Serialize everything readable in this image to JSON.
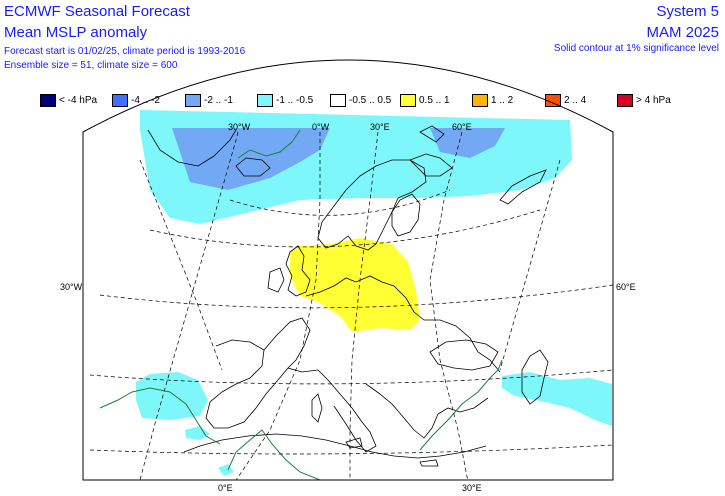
{
  "header": {
    "title": "ECMWF Seasonal Forecast",
    "subtitle": "Mean MSLP anomaly",
    "forecast_start": "Forecast start is 01/02/25, climate period is 1993-2016",
    "ensemble": "Ensemble size = 51, climate size = 600",
    "system": "System 5",
    "season": "MAM 2025",
    "significance_note": "Solid contour at 1% significance level"
  },
  "legend": {
    "unit": "hPa",
    "items": [
      {
        "label": "< -4 hPa",
        "color": "#00007f"
      },
      {
        "label": "-4 .. -2",
        "color": "#3f6fff"
      },
      {
        "label": "-2 .. -1",
        "color": "#73a8f5"
      },
      {
        "label": "-1 .. -0.5",
        "color": "#7df7fa"
      },
      {
        "label": "-0.5 .. 0.5",
        "color": "#ffffff"
      },
      {
        "label": "0.5 .. 1",
        "color": "#ffff33"
      },
      {
        "label": "1 .. 2",
        "color": "#ffb000"
      },
      {
        "label": "2 .. 4",
        "color": "#ff4f00"
      },
      {
        "label": "> 4 hPa",
        "color": "#d70029"
      }
    ]
  },
  "map": {
    "region": "Europe / North Atlantic",
    "graticule_labels": {
      "top": [
        "30°W",
        "0°W",
        "30°E",
        "60°E"
      ],
      "left": [
        "30°W"
      ],
      "right": [
        "60°E"
      ],
      "bottom": [
        "0°E",
        "30°E"
      ]
    },
    "anomaly_areas": [
      {
        "name": "north-atlantic-negative-core",
        "category": "-2 .. -1"
      },
      {
        "name": "north-atlantic-arctic-negative",
        "category": "-1 .. -0.5"
      },
      {
        "name": "north-sea-positive",
        "category": "0.5 .. 1"
      },
      {
        "name": "iberia-atlantic-negative",
        "category": "-1 .. -0.5"
      },
      {
        "name": "caspian-negative",
        "category": "-1 .. -0.5"
      }
    ],
    "colors": {
      "coastline": "#000000",
      "significance_contour": "#1b7f3a",
      "graticule": "#000000"
    }
  }
}
